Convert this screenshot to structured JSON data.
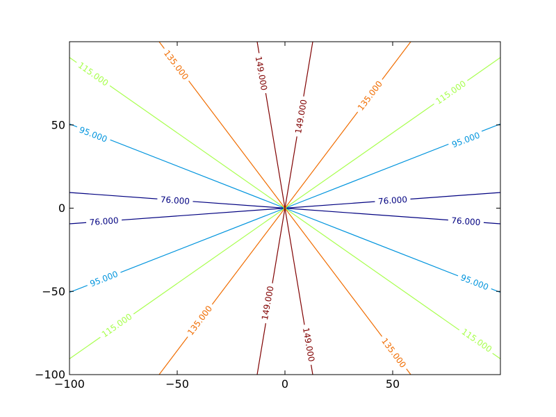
{
  "chart_data": {
    "type": "contour",
    "title": "",
    "xlabel": "",
    "ylabel": "",
    "xlim": [
      -100,
      100
    ],
    "ylim": [
      -100,
      100
    ],
    "grid": false,
    "x_ticks": [
      {
        "value": -100,
        "label": "−100"
      },
      {
        "value": -50,
        "label": "−50"
      },
      {
        "value": 0,
        "label": "0"
      },
      {
        "value": 50,
        "label": "50"
      }
    ],
    "y_ticks": [
      {
        "value": -100,
        "label": "−100"
      },
      {
        "value": -50,
        "label": "−50"
      },
      {
        "value": 0,
        "label": "0"
      },
      {
        "value": 50,
        "label": "50"
      }
    ],
    "levels": [
      {
        "value": 76,
        "label": "76.000",
        "color": "#000080",
        "segments": [
          {
            "from": [
              0,
              0
            ],
            "to": [
              -100,
              9.4
            ]
          },
          {
            "from": [
              0,
              0
            ],
            "to": [
              100,
              9.4
            ]
          },
          {
            "from": [
              0,
              0
            ],
            "to": [
              -100,
              -9.4
            ]
          },
          {
            "from": [
              0,
              0
            ],
            "to": [
              100,
              -9.4
            ]
          }
        ],
        "label_points": [
          [
            -51,
            4.6
          ],
          [
            50,
            4.6
          ],
          [
            -84,
            -8
          ],
          [
            84,
            -8
          ]
        ]
      },
      {
        "value": 95,
        "label": "95.000",
        "color": "#0094dd",
        "segments": [
          {
            "from": [
              0,
              0
            ],
            "to": [
              -100,
              50.6
            ]
          },
          {
            "from": [
              0,
              0
            ],
            "to": [
              100,
              50.6
            ]
          },
          {
            "from": [
              0,
              0
            ],
            "to": [
              -100,
              -50.6
            ]
          },
          {
            "from": [
              0,
              0
            ],
            "to": [
              100,
              -50.6
            ]
          }
        ],
        "label_points": [
          [
            -89,
            44.2
          ],
          [
            84,
            41
          ],
          [
            -84,
            -42.5
          ],
          [
            88,
            -44.6
          ]
        ]
      },
      {
        "value": 115,
        "label": "115.000",
        "color": "#a8ff4e",
        "segments": [
          {
            "from": [
              0,
              0
            ],
            "to": [
              -100,
              90.5
            ]
          },
          {
            "from": [
              0,
              0
            ],
            "to": [
              100,
              90.5
            ]
          },
          {
            "from": [
              0,
              0
            ],
            "to": [
              -100,
              -90.5
            ]
          },
          {
            "from": [
              0,
              0
            ],
            "to": [
              100,
              -90.5
            ]
          }
        ],
        "label_points": [
          [
            -89,
            80.5
          ],
          [
            77,
            69.5
          ],
          [
            -78,
            -70.5
          ],
          [
            89,
            -79.5
          ]
        ]
      },
      {
        "value": 135,
        "label": "135.000",
        "color": "#f06c00",
        "segments": [
          {
            "from": [
              0,
              0
            ],
            "to": [
              -58.4,
              -100
            ]
          },
          {
            "from": [
              0,
              0
            ],
            "to": [
              -58.4,
              100
            ]
          },
          {
            "from": [
              0,
              0
            ],
            "to": [
              58.4,
              100
            ]
          },
          {
            "from": [
              0,
              0
            ],
            "to": [
              58.4,
              -100
            ]
          }
        ],
        "label_points": [
          [
            -50.5,
            86
          ],
          [
            39.5,
            67.5
          ],
          [
            -39.5,
            -67.5
          ],
          [
            50.5,
            -87
          ]
        ]
      },
      {
        "value": 149,
        "label": "149.000",
        "color": "#800000",
        "segments": [
          {
            "from": [
              0,
              0
            ],
            "to": [
              -12.9,
              -100
            ]
          },
          {
            "from": [
              0,
              0
            ],
            "to": [
              12.9,
              100
            ]
          },
          {
            "from": [
              0,
              0
            ],
            "to": [
              12.9,
              -100
            ]
          },
          {
            "from": [
              0,
              0
            ],
            "to": [
              -12.9,
              100
            ]
          }
        ],
        "label_points": [
          [
            -11,
            81
          ],
          [
            7.5,
            55
          ],
          [
            -8,
            -57
          ],
          [
            11,
            -82
          ]
        ]
      }
    ]
  }
}
